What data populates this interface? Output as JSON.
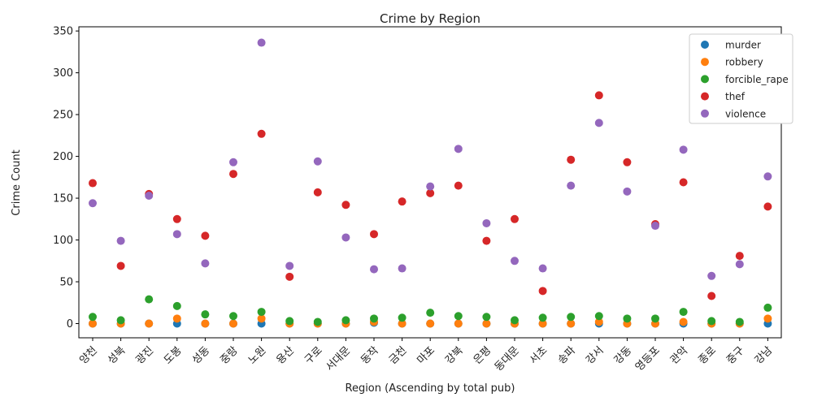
{
  "chart_data": {
    "type": "scatter",
    "title": "Crime by Region",
    "xlabel": "Region (Ascending by total pub)",
    "ylabel": "Crime Count",
    "ylim": [
      -17,
      355
    ],
    "yticks": [
      0,
      50,
      100,
      150,
      200,
      250,
      300,
      350
    ],
    "grid": false,
    "legend_position": "top-right",
    "categories": [
      "양천",
      "성북",
      "광진",
      "도봉",
      "성동",
      "중랑",
      "노원",
      "용산",
      "구로",
      "서대문",
      "동작",
      "금천",
      "마포",
      "강북",
      "은평",
      "동대문",
      "서초",
      "송파",
      "강서",
      "강동",
      "영등포",
      "관악",
      "종로",
      "중구",
      "강남"
    ],
    "series": [
      {
        "name": "murder",
        "color": "#1f77b4",
        "values": [
          0,
          0,
          0,
          0,
          0,
          0,
          0,
          0,
          0,
          0,
          1,
          0,
          0,
          0,
          0,
          0,
          0,
          0,
          0,
          0,
          0,
          0,
          0,
          0,
          0
        ]
      },
      {
        "name": "robbery",
        "color": "#ff7f0e",
        "values": [
          0,
          0,
          0,
          6,
          0,
          0,
          6,
          0,
          0,
          0,
          2,
          0,
          0,
          0,
          0,
          0,
          0,
          0,
          2,
          0,
          0,
          2,
          0,
          0,
          6
        ]
      },
      {
        "name": "forcible_rape",
        "color": "#2ca02c",
        "values": [
          8,
          4,
          29,
          21,
          11,
          9,
          14,
          3,
          2,
          4,
          6,
          7,
          13,
          9,
          8,
          4,
          7,
          8,
          9,
          6,
          6,
          14,
          3,
          2,
          19
        ]
      },
      {
        "name": "thef",
        "color": "#d62728",
        "values": [
          168,
          69,
          155,
          125,
          105,
          179,
          227,
          56,
          157,
          142,
          107,
          146,
          156,
          165,
          99,
          125,
          39,
          196,
          273,
          193,
          119,
          169,
          33,
          81,
          140
        ]
      },
      {
        "name": "violence",
        "color": "#9467bd",
        "values": [
          144,
          99,
          153,
          107,
          72,
          193,
          336,
          69,
          194,
          103,
          65,
          66,
          164,
          209,
          120,
          75,
          66,
          165,
          240,
          158,
          117,
          208,
          57,
          71,
          176
        ]
      }
    ]
  }
}
